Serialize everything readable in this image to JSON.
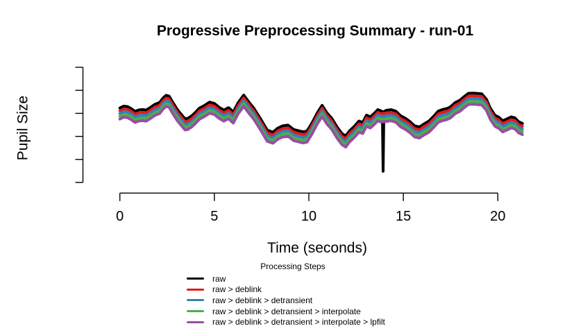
{
  "chart": {
    "title": "Progressive Preprocessing Summary - run-01",
    "ylabel": "Pupil Size",
    "xlabel": "Time (seconds)",
    "legend_title": "Processing Steps"
  },
  "chart_data": {
    "type": "line",
    "title": "Progressive Preprocessing Summary - run-01",
    "xlabel": "Time (seconds)",
    "ylabel": "Pupil Size",
    "x_ticks": [
      0,
      5,
      10,
      15,
      20
    ],
    "x_tick_labels": [
      "0",
      "5",
      "10",
      "15",
      "20"
    ],
    "y_tick_count": 6,
    "y_tick_labels": [],
    "xlim": [
      0,
      21.3
    ],
    "ylim": [
      0,
      100
    ],
    "grid": false,
    "legend_position": "bottom",
    "legend_title": "Processing Steps",
    "description": "Five progressively offset copies of the same pupil-size trace; each processing step is drawn 2.4 units lower than the previous. Only the raw trace contains the downward blink spike near t=13.9 s.",
    "base_x": [
      0,
      0.2,
      0.4,
      0.6,
      0.8,
      1.0,
      1.2,
      1.4,
      1.6,
      1.85,
      2.1,
      2.3,
      2.45,
      2.6,
      2.8,
      3.05,
      3.3,
      3.45,
      3.6,
      3.8,
      4.0,
      4.2,
      4.45,
      4.75,
      5.0,
      5.25,
      5.5,
      5.75,
      6.0,
      6.25,
      6.55,
      6.8,
      7.1,
      7.45,
      7.8,
      8.1,
      8.35,
      8.6,
      8.9,
      9.2,
      9.5,
      9.7,
      9.9,
      10.15,
      10.45,
      10.7,
      10.95,
      11.2,
      11.5,
      11.75,
      11.95,
      12.15,
      12.4,
      12.65,
      12.85,
      13.05,
      13.25,
      13.45,
      13.65,
      13.82,
      14.1,
      14.35,
      14.6,
      14.85,
      15.1,
      15.35,
      15.6,
      15.85,
      16.1,
      16.35,
      16.6,
      16.85,
      17.1,
      17.3,
      17.5,
      17.75,
      18.0,
      18.2,
      18.45,
      18.7,
      18.95,
      19.15,
      19.4,
      19.6,
      19.85,
      20.05,
      20.25,
      20.45,
      20.7,
      20.9,
      21.1,
      21.3
    ],
    "base_y": [
      64.6,
      66.5,
      67.4,
      65.2,
      62.2,
      63.4,
      64.0,
      64.3,
      65.9,
      68.3,
      70.7,
      74.4,
      76.2,
      75.0,
      71.3,
      64.6,
      57.9,
      55.5,
      56.7,
      58.8,
      61.6,
      64.6,
      67.7,
      70.1,
      68.3,
      66.5,
      64.0,
      65.5,
      62.8,
      70.1,
      75.9,
      71.3,
      64.6,
      55.5,
      47.0,
      43.9,
      48.2,
      50.0,
      49.4,
      47.0,
      45.1,
      43.3,
      45.7,
      53.0,
      61.0,
      68.0,
      61.6,
      55.5,
      48.2,
      43.3,
      40.9,
      44.5,
      49.4,
      53.7,
      52.4,
      59.1,
      57.9,
      61.0,
      63.4,
      62.2,
      64.0,
      63.7,
      62.8,
      59.8,
      56.1,
      52.4,
      50.0,
      48.8,
      51.2,
      54.9,
      58.5,
      61.6,
      64.0,
      65.9,
      66.5,
      69.5,
      72.6,
      75.6,
      78.0,
      79.3,
      78.7,
      76.8,
      72.6,
      66.5,
      59.1,
      56.1,
      54.6,
      56.7,
      57.0,
      55.8,
      54.3,
      52.4
    ],
    "series": [
      {
        "key": "raw",
        "name": "raw",
        "color": "#000000",
        "offset": 0,
        "spike": {
          "t": 13.93,
          "v": 9.8
        }
      },
      {
        "key": "deblink",
        "name": "raw > deblink",
        "color": "#E41A1C",
        "offset": -2.44
      },
      {
        "key": "detransient",
        "name": "raw > deblink > detransient",
        "color": "#377EB8",
        "offset": -4.88
      },
      {
        "key": "interpolate",
        "name": "raw > deblink > detransient > interpolate",
        "color": "#4DAF4A",
        "offset": -7.32
      },
      {
        "key": "lpfilt",
        "name": "raw > deblink > detransient > interpolate > lpfilt",
        "color": "#984EA3",
        "offset": -9.76
      }
    ],
    "noise_texture": {
      "amp1": 0.8,
      "freq1": 7.9,
      "amp2": 0.5,
      "freq2": 21.3
    }
  }
}
